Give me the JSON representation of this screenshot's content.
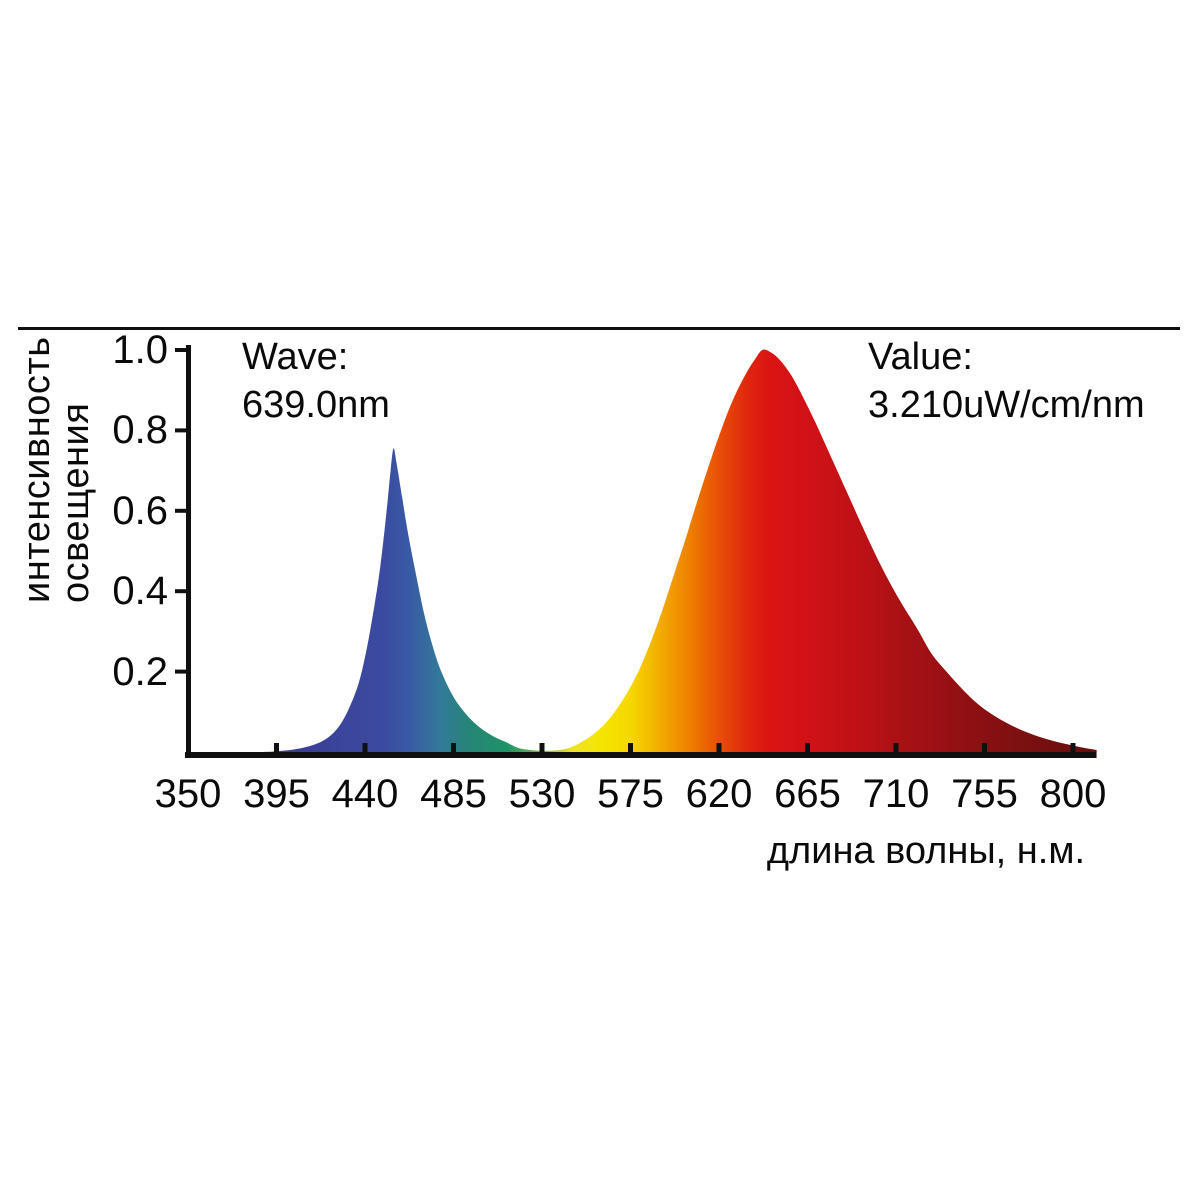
{
  "page": {
    "background": "#ffffff",
    "text_color": "#0a0a0a",
    "axis_color": "#101010"
  },
  "annotations": {
    "wave_label": "Wave:",
    "wave_value": "639.0nm",
    "value_label": "Value:",
    "value_value": "3.210uW/cm/nm"
  },
  "chart_data": {
    "type": "area",
    "title": "",
    "xlabel": "длина волны, н.м.",
    "ylabel_lines": [
      "интенсивность",
      "освещения"
    ],
    "x_ticks": [
      350,
      395,
      440,
      485,
      530,
      575,
      620,
      665,
      710,
      755,
      800
    ],
    "y_ticks": [
      1.0,
      0.8,
      0.6,
      0.4,
      0.2
    ],
    "xlim": [
      350,
      815
    ],
    "ylim": [
      0,
      1.0
    ],
    "grid": false,
    "legend": false,
    "cursor_readout": {
      "wavelength_nm": 639.0,
      "value_uW_per_cm_per_nm": 3.21
    },
    "peaks": [
      {
        "name": "blue-peak",
        "center_nm": 454,
        "height": 0.755,
        "fwhm_nm": 28
      },
      {
        "name": "red-peak",
        "center_nm": 642,
        "height": 1.0,
        "fwhm_nm": 108
      }
    ],
    "series": [
      {
        "name": "spectrum",
        "points": [
          [
            350,
            0
          ],
          [
            388,
            0
          ],
          [
            398,
            0.003
          ],
          [
            406,
            0.008
          ],
          [
            414,
            0.018
          ],
          [
            421,
            0.035
          ],
          [
            427,
            0.065
          ],
          [
            432,
            0.11
          ],
          [
            437,
            0.175
          ],
          [
            441,
            0.26
          ],
          [
            445,
            0.37
          ],
          [
            448,
            0.47
          ],
          [
            451,
            0.6
          ],
          [
            453,
            0.7
          ],
          [
            454.5,
            0.755
          ],
          [
            456,
            0.72
          ],
          [
            459,
            0.63
          ],
          [
            462,
            0.54
          ],
          [
            466,
            0.44
          ],
          [
            470,
            0.345
          ],
          [
            474,
            0.27
          ],
          [
            478,
            0.21
          ],
          [
            483,
            0.155
          ],
          [
            488,
            0.115
          ],
          [
            494,
            0.08
          ],
          [
            500,
            0.055
          ],
          [
            506,
            0.037
          ],
          [
            512,
            0.024
          ],
          [
            518,
            0.01
          ],
          [
            524,
            0.005
          ],
          [
            530,
            0.003
          ],
          [
            537,
            0.004
          ],
          [
            543,
            0.009
          ],
          [
            549,
            0.022
          ],
          [
            555,
            0.04
          ],
          [
            561,
            0.065
          ],
          [
            567,
            0.1
          ],
          [
            573,
            0.145
          ],
          [
            579,
            0.2
          ],
          [
            585,
            0.27
          ],
          [
            591,
            0.35
          ],
          [
            597,
            0.44
          ],
          [
            603,
            0.53
          ],
          [
            609,
            0.625
          ],
          [
            615,
            0.715
          ],
          [
            621,
            0.8
          ],
          [
            627,
            0.875
          ],
          [
            633,
            0.935
          ],
          [
            638,
            0.975
          ],
          [
            642,
            1.0
          ],
          [
            646,
            0.995
          ],
          [
            651,
            0.975
          ],
          [
            657,
            0.935
          ],
          [
            663,
            0.88
          ],
          [
            669,
            0.82
          ],
          [
            675,
            0.755
          ],
          [
            681,
            0.69
          ],
          [
            687,
            0.625
          ],
          [
            693,
            0.56
          ],
          [
            700,
            0.487
          ],
          [
            707,
            0.42
          ],
          [
            714,
            0.36
          ],
          [
            721,
            0.305
          ],
          [
            728,
            0.245
          ],
          [
            736,
            0.198
          ],
          [
            744,
            0.155
          ],
          [
            752,
            0.118
          ],
          [
            760,
            0.09
          ],
          [
            768,
            0.068
          ],
          [
            776,
            0.05
          ],
          [
            784,
            0.036
          ],
          [
            792,
            0.025
          ],
          [
            800,
            0.016
          ],
          [
            806,
            0.01
          ],
          [
            812,
            0.005
          ]
        ]
      }
    ],
    "gradient_stops": [
      [
        395,
        "#3A3C92"
      ],
      [
        448,
        "#3B4AA0"
      ],
      [
        462,
        "#3959A4"
      ],
      [
        478,
        "#33799A"
      ],
      [
        493,
        "#268577"
      ],
      [
        512,
        "#1E9368"
      ],
      [
        530,
        "#79B445"
      ],
      [
        545,
        "#EDE32A"
      ],
      [
        560,
        "#F5E400"
      ],
      [
        575,
        "#F5D800"
      ],
      [
        590,
        "#F2AC00"
      ],
      [
        604,
        "#EF8300"
      ],
      [
        615,
        "#EB5E04"
      ],
      [
        625,
        "#E64109"
      ],
      [
        635,
        "#E0260E"
      ],
      [
        645,
        "#DB1414"
      ],
      [
        665,
        "#D11217"
      ],
      [
        690,
        "#BF1116"
      ],
      [
        715,
        "#A71114"
      ],
      [
        740,
        "#941013"
      ],
      [
        765,
        "#821011"
      ],
      [
        790,
        "#730F10"
      ],
      [
        812,
        "#670E0F"
      ]
    ]
  }
}
